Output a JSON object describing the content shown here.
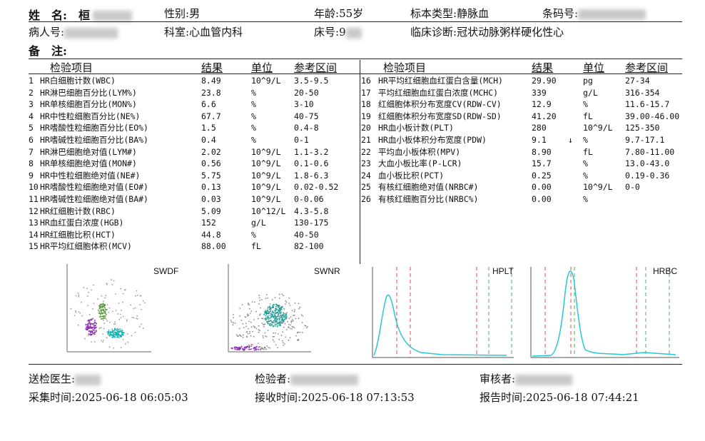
{
  "patient": {
    "name_label": "姓　名:",
    "name_value": "桓",
    "gender_label": "性别:",
    "gender_value": "男",
    "age_label": "年龄:",
    "age_value": "55岁",
    "sample_type_label": "标本类型:",
    "sample_type_value": "静脉血",
    "barcode_label": "条码号:",
    "patient_id_label": "病人号:",
    "dept_label": "科室:",
    "dept_value": "心血管内科",
    "bed_label": "床号:",
    "bed_value": "9",
    "diagnosis_label": "临床诊断:",
    "diagnosis_value": "冠状动脉粥样硬化性心",
    "remark_label": "备　注:"
  },
  "columns": {
    "item": "检验项目",
    "result": "结果",
    "unit": "单位",
    "range": "参考区间"
  },
  "left_rows": [
    {
      "no": "1",
      "name": "HR白细胞计数(WBC)",
      "result": "8.49",
      "flag": "",
      "unit": "10^9/L",
      "range": "3.5-9.5"
    },
    {
      "no": "2",
      "name": "HR淋巴细胞百分比(LYM%)",
      "result": "23.8",
      "flag": "",
      "unit": "%",
      "range": "20-50"
    },
    {
      "no": "3",
      "name": "HR单核细胞百分比(MON%)",
      "result": "6.6",
      "flag": "",
      "unit": "%",
      "range": "3-10"
    },
    {
      "no": "4",
      "name": "HR中性粒细胞百分比(NE%)",
      "result": "67.7",
      "flag": "",
      "unit": "%",
      "range": "40-75"
    },
    {
      "no": "5",
      "name": "HR嗜酸性粒细胞百分比(EO%)",
      "result": "1.5",
      "flag": "",
      "unit": "%",
      "range": "0.4-8"
    },
    {
      "no": "6",
      "name": "HR嗜碱性粒细胞百分比(BA%)",
      "result": "0.4",
      "flag": "",
      "unit": "%",
      "range": "0-1"
    },
    {
      "no": "7",
      "name": "HR淋巴细胞绝对值(LYM#)",
      "result": "2.02",
      "flag": "",
      "unit": "10^9/L",
      "range": "1.1-3.2"
    },
    {
      "no": "8",
      "name": "HR单核细胞绝对值(MON#)",
      "result": "0.56",
      "flag": "",
      "unit": "10^9/L",
      "range": "0.1-0.6"
    },
    {
      "no": "9",
      "name": "HR中性粒细胞绝对值(NE#)",
      "result": "5.75",
      "flag": "",
      "unit": "10^9/L",
      "range": "1.8-6.3"
    },
    {
      "no": "10",
      "name": "HR嗜酸性粒细胞绝对值(EO#)",
      "result": "0.13",
      "flag": "",
      "unit": "10^9/L",
      "range": "0.02-0.52"
    },
    {
      "no": "11",
      "name": "HR嗜碱性粒细胞绝对值(BA#)",
      "result": "0.03",
      "flag": "",
      "unit": "10^9/L",
      "range": "0-0.06"
    },
    {
      "no": "12",
      "name": "HR红细胞计数(RBC)",
      "result": "5.09",
      "flag": "",
      "unit": "10^12/L",
      "range": "4.3-5.8"
    },
    {
      "no": "13",
      "name": "HR血红蛋白浓度(HGB)",
      "result": "152",
      "flag": "",
      "unit": "g/L",
      "range": "130-175"
    },
    {
      "no": "14",
      "name": "HR红细胞比积(HCT)",
      "result": "44.8",
      "flag": "",
      "unit": "%",
      "range": "40-50"
    },
    {
      "no": "15",
      "name": "HR平均红细胞体积(MCV)",
      "result": "88.00",
      "flag": "",
      "unit": "fL",
      "range": "82-100"
    }
  ],
  "right_rows": [
    {
      "no": "16",
      "name": "HR平均红细胞血红蛋白含量(MCH)",
      "result": "29.90",
      "flag": "",
      "unit": "pg",
      "range": "27-34"
    },
    {
      "no": "17",
      "name": "平均红细胞血红蛋白浓度(MCHC)",
      "result": "339",
      "flag": "",
      "unit": "g/L",
      "range": "316-354"
    },
    {
      "no": "18",
      "name": "红细胞体积分布宽度CV(RDW-CV)",
      "result": "12.9",
      "flag": "",
      "unit": "%",
      "range": "11.6-15.7"
    },
    {
      "no": "19",
      "name": "红细胞体积分布宽度SD(RDW-SD)",
      "result": "41.20",
      "flag": "",
      "unit": "fL",
      "range": "39.00-46.00"
    },
    {
      "no": "20",
      "name": "HR血小板计数(PLT)",
      "result": "280",
      "flag": "",
      "unit": "10^9/L",
      "range": "125-350"
    },
    {
      "no": "21",
      "name": "HR血小板体积分布宽度(PDW)",
      "result": "9.1",
      "flag": "↓",
      "unit": "%",
      "range": "9.7-17.1"
    },
    {
      "no": "22",
      "name": "平均血小板体积(MPV)",
      "result": "8.90",
      "flag": "",
      "unit": "fL",
      "range": "7.80-11.00"
    },
    {
      "no": "23",
      "name": "大血小板比率(P-LCR)",
      "result": "15.7",
      "flag": "",
      "unit": "%",
      "range": "13.0-43.0"
    },
    {
      "no": "24",
      "name": "血小板比积(PCT)",
      "result": "0.25",
      "flag": "",
      "unit": "%",
      "range": "0.19-0.36"
    },
    {
      "no": "25",
      "name": "有核红细胞绝对值(NRBC#)",
      "result": "0.00",
      "flag": "",
      "unit": "10^9/L",
      "range": "0-0"
    },
    {
      "no": "26",
      "name": "有核红细胞百分比(NRBC%)",
      "result": "0.00",
      "flag": "",
      "unit": "%",
      "range": ""
    }
  ],
  "plots": {
    "swdf": "SWDF",
    "swnr": "SWNR",
    "hplt": "HPLT",
    "hrbc": "HRBC"
  },
  "footer": {
    "doctor_label": "送检医生:",
    "checker_label": "检验者:",
    "reviewer_label": "审核者:",
    "collect_label": "采集时间:",
    "collect_time": "2025-06-18 06:05:03",
    "receive_label": "接收时间:",
    "receive_time": "2025-06-18 07:13:53",
    "report_label": "报告时间:",
    "report_time": "2025-06-18 07:44:21"
  },
  "colors": {
    "swdf_purple": "#8a2fb0",
    "swdf_green": "#5a9a3a",
    "swdf_cyan": "#17b3b3",
    "swnr_teal": "#1f9e96",
    "curve": "#26c6d6",
    "marker_red": "#e04848",
    "marker_green": "#4caf50"
  }
}
